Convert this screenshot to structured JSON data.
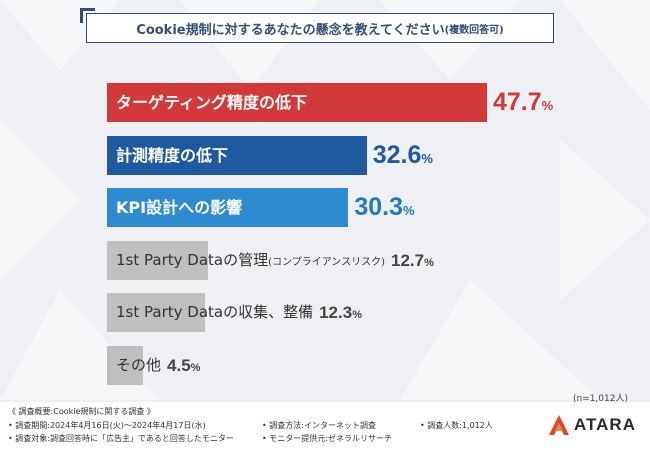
{
  "title": {
    "main": "Cookie規制に対するあなたの懸念を教えてください",
    "sub": "(複数回答可)"
  },
  "chart_data": {
    "type": "bar",
    "orientation": "horizontal",
    "categories": [
      "ターゲティング精度の低下",
      "計測精度の低下",
      "KPI設計への影響",
      "1st Party Dataの管理(コンプライアンスリスク)",
      "1st Party Dataの収集、整備",
      "その他"
    ],
    "values": [
      47.7,
      32.6,
      30.3,
      12.7,
      12.3,
      4.5
    ],
    "unit": "%",
    "xlim": [
      0,
      100
    ],
    "colors": [
      "#d23a3a",
      "#1f5aa0",
      "#2e8bd0",
      "#bfbfbf",
      "#bfbfbf",
      "#bfbfbf"
    ],
    "value_colors": [
      "#d23a3a",
      "#1f5aa0",
      "#1f7bbf",
      "#444444",
      "#444444",
      "#444444"
    ]
  },
  "bars": [
    {
      "main": "ターゲティング精度の低下",
      "sub": ""
    },
    {
      "main": "計測精度の低下",
      "sub": ""
    },
    {
      "main": "KPI設計への影響",
      "sub": ""
    },
    {
      "main": "1st Party Dataの管理",
      "sub": "(コンプライアンスリスク)"
    },
    {
      "main": "1st Party Dataの収集、整備",
      "sub": ""
    },
    {
      "main": "その他",
      "sub": ""
    }
  ],
  "sample_note": "(n=1,012人)",
  "footer": {
    "line1": "《 調査概要:Cookie規制に関する調査 》",
    "line2_a": "• 調査期間:2024年4月16日(火)〜2024年4月17日(水)",
    "line2_b": "• 調査方法:インターネット調査",
    "line2_c": "• 調査人数:1,012人",
    "line3_a": "• 調査対象:調査回答時に「広告主」であると回答したモニター",
    "line3_b": "• モニター提供元:ゼネラルリサーチ"
  },
  "logo": {
    "text": "ATARA",
    "icon": "atara-logo-icon",
    "color": "#e2452a"
  }
}
